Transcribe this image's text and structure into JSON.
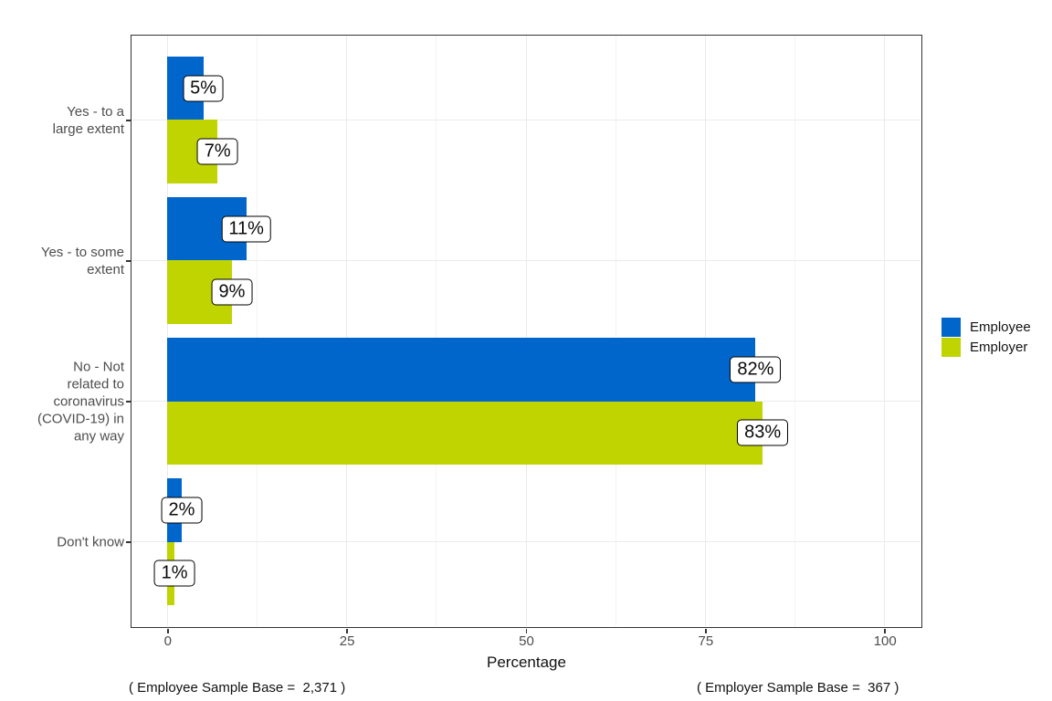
{
  "chart_data": {
    "type": "bar",
    "orientation": "horizontal",
    "title": "",
    "xlabel": "Percentage",
    "xlim": [
      0,
      100
    ],
    "xtick_values": [
      0,
      25,
      50,
      75,
      100
    ],
    "xticks": [
      "0",
      "25",
      "50",
      "75",
      "100"
    ],
    "minor_gridlines": [
      12.5,
      37.5,
      62.5,
      87.5
    ],
    "grid": "vertical major+minor, horizontal major at category centers",
    "legend_position": "right",
    "categories": [
      "Yes - to a\nlarge extent",
      "Yes - to some\nextent",
      "No - Not\nrelated to\ncoronavirus\n(COVID-19) in\nany way",
      "Don't know"
    ],
    "series": [
      {
        "name": "Employee",
        "color": "#0066CC",
        "values": [
          5,
          11,
          82,
          2
        ],
        "labels": [
          "5%",
          "11%",
          "82%",
          "2%"
        ]
      },
      {
        "name": "Employer",
        "color": "#BFD400",
        "values": [
          7,
          9,
          83,
          1
        ],
        "labels": [
          "7%",
          "9%",
          "83%",
          "1%"
        ]
      }
    ]
  },
  "annotations": {
    "employee_sample_base": "( Employee Sample Base =  2,371 )",
    "employer_sample_base": "( Employer Sample Base =  367 )"
  },
  "style": {
    "panel_border_color": "#333333",
    "grid_major_color": "#EBEBEB",
    "grid_minor_color": "#F3F3F3",
    "axis_text_color": "#4D4D4D",
    "bar_label_bg": "#FFFFFF",
    "bar_label_border": "#000000"
  }
}
